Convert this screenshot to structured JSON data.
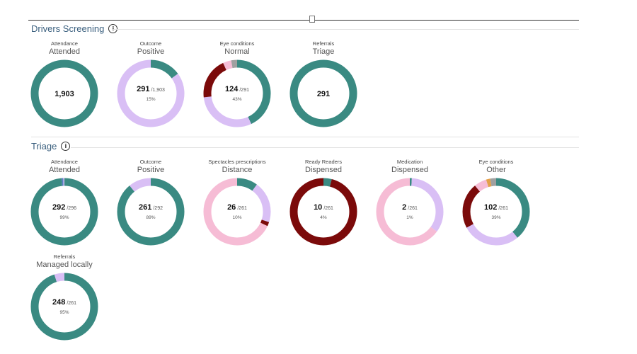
{
  "colors": {
    "teal": "#3a8a82",
    "lavender": "#d9bff5",
    "maroon": "#7b0a0a",
    "pink": "#f6bcd5",
    "grey": "#a0a0a0",
    "blue": "#5b7dc4",
    "orange": "#e3a04a"
  },
  "sections": [
    {
      "title": "Drivers Screening",
      "charts": [
        {
          "label": "Attendance",
          "value": "Attended",
          "center_main": "1,903",
          "center_den": "",
          "center_pct": "",
          "segments": [
            {
              "fraction": 1.0,
              "color": "#3a8a82"
            }
          ]
        },
        {
          "label": "Outcome",
          "value": "Positive",
          "center_main": "291",
          "center_den": "/1,903",
          "center_pct": "15%",
          "segments": [
            {
              "fraction": 0.15,
              "color": "#3a8a82"
            },
            {
              "fraction": 0.85,
              "color": "#d9bff5"
            }
          ]
        },
        {
          "label": "Eye conditions",
          "value": "Normal",
          "center_main": "124",
          "center_den": "/291",
          "center_pct": "43%",
          "segments": [
            {
              "fraction": 0.43,
              "color": "#3a8a82"
            },
            {
              "fraction": 0.3,
              "color": "#d9bff5"
            },
            {
              "fraction": 0.2,
              "color": "#7b0a0a"
            },
            {
              "fraction": 0.04,
              "color": "#f6bcd5"
            },
            {
              "fraction": 0.03,
              "color": "#a0a0a0"
            }
          ]
        },
        {
          "label": "Referrals",
          "value": "Triage",
          "center_main": "291",
          "center_den": "",
          "center_pct": "",
          "segments": [
            {
              "fraction": 1.0,
              "color": "#3a8a82"
            }
          ]
        }
      ]
    },
    {
      "title": "Triage",
      "charts": [
        {
          "label": "Attendance",
          "value": "Attended",
          "center_main": "292",
          "center_den": "/296",
          "center_pct": "99%",
          "segments": [
            {
              "fraction": 0.985,
              "color": "#3a8a82"
            },
            {
              "fraction": 0.008,
              "color": "#5b7dc4"
            },
            {
              "fraction": 0.007,
              "color": "#d9bff5"
            }
          ]
        },
        {
          "label": "Outcome",
          "value": "Positive",
          "center_main": "261",
          "center_den": "/292",
          "center_pct": "89%",
          "segments": [
            {
              "fraction": 0.89,
              "color": "#3a8a82"
            },
            {
              "fraction": 0.11,
              "color": "#d9bff5"
            }
          ]
        },
        {
          "label": "Spectacles prescriptions",
          "value": "Distance",
          "center_main": "26",
          "center_den": "/261",
          "center_pct": "10%",
          "segments": [
            {
              "fraction": 0.1,
              "color": "#3a8a82"
            },
            {
              "fraction": 0.2,
              "color": "#d9bff5"
            },
            {
              "fraction": 0.02,
              "color": "#7b0a0a"
            },
            {
              "fraction": 0.68,
              "color": "#f6bcd5"
            }
          ]
        },
        {
          "label": "Ready Readers",
          "value": "Dispensed",
          "center_main": "10",
          "center_den": "/261",
          "center_pct": "4%",
          "segments": [
            {
              "fraction": 0.04,
              "color": "#3a8a82"
            },
            {
              "fraction": 0.96,
              "color": "#7b0a0a"
            }
          ]
        },
        {
          "label": "Medication",
          "value": "Dispensed",
          "center_main": "2",
          "center_den": "/261",
          "center_pct": "1%",
          "segments": [
            {
              "fraction": 0.01,
              "color": "#3a8a82"
            },
            {
              "fraction": 0.34,
              "color": "#d9bff5"
            },
            {
              "fraction": 0.65,
              "color": "#f6bcd5"
            }
          ]
        },
        {
          "label": "Eye conditions",
          "value": "Other",
          "center_main": "102",
          "center_den": "/261",
          "center_pct": "39%",
          "segments": [
            {
              "fraction": 0.39,
              "color": "#3a8a82"
            },
            {
              "fraction": 0.28,
              "color": "#d9bff5"
            },
            {
              "fraction": 0.22,
              "color": "#7b0a0a"
            },
            {
              "fraction": 0.06,
              "color": "#f6bcd5"
            },
            {
              "fraction": 0.02,
              "color": "#e3a04a"
            },
            {
              "fraction": 0.03,
              "color": "#a0a0a0"
            }
          ]
        },
        {
          "label": "Referrals",
          "value": "Managed locally",
          "center_main": "248",
          "center_den": "/261",
          "center_pct": "95%",
          "segments": [
            {
              "fraction": 0.95,
              "color": "#3a8a82"
            },
            {
              "fraction": 0.05,
              "color": "#d9bff5"
            }
          ]
        }
      ]
    }
  ],
  "chart_data": [
    {
      "type": "pie",
      "section": "Drivers Screening",
      "title": "Attendance",
      "subtitle": "Attended",
      "total": 1903
    },
    {
      "type": "pie",
      "section": "Drivers Screening",
      "title": "Outcome",
      "subtitle": "Positive",
      "value": 291,
      "total": 1903,
      "percent": 15
    },
    {
      "type": "pie",
      "section": "Drivers Screening",
      "title": "Eye conditions",
      "subtitle": "Normal",
      "value": 124,
      "total": 291,
      "percent": 43
    },
    {
      "type": "pie",
      "section": "Drivers Screening",
      "title": "Referrals",
      "subtitle": "Triage",
      "total": 291
    },
    {
      "type": "pie",
      "section": "Triage",
      "title": "Attendance",
      "subtitle": "Attended",
      "value": 292,
      "total": 296,
      "percent": 99
    },
    {
      "type": "pie",
      "section": "Triage",
      "title": "Outcome",
      "subtitle": "Positive",
      "value": 261,
      "total": 292,
      "percent": 89
    },
    {
      "type": "pie",
      "section": "Triage",
      "title": "Spectacles prescriptions",
      "subtitle": "Distance",
      "value": 26,
      "total": 261,
      "percent": 10
    },
    {
      "type": "pie",
      "section": "Triage",
      "title": "Ready Readers",
      "subtitle": "Dispensed",
      "value": 10,
      "total": 261,
      "percent": 4
    },
    {
      "type": "pie",
      "section": "Triage",
      "title": "Medication",
      "subtitle": "Dispensed",
      "value": 2,
      "total": 261,
      "percent": 1
    },
    {
      "type": "pie",
      "section": "Triage",
      "title": "Eye conditions",
      "subtitle": "Other",
      "value": 102,
      "total": 261,
      "percent": 39
    },
    {
      "type": "pie",
      "section": "Triage",
      "title": "Referrals",
      "subtitle": "Managed locally",
      "value": 248,
      "total": 261,
      "percent": 95
    }
  ]
}
